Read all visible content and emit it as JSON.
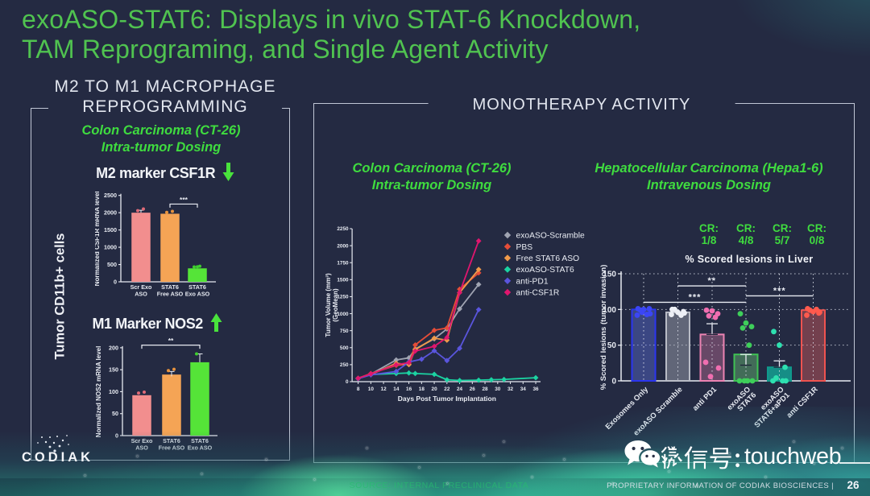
{
  "slide": {
    "title_line1": "exoASO-STAT6: Displays in vivo STAT-6 Knockdown,",
    "title_line2": "TAM Reprograming, and Single Agent Activity",
    "page_number": "26",
    "footer_source": "SOURCE: INTERNAL PRECLINICAL DATA",
    "footer_proprietary": "PROPRIETARY INFORMATION OF CODIAK BIOSCIENCES  |",
    "logo_text": "CODIAK",
    "background_color": "#242a42",
    "title_color": "#50c350",
    "accent_green": "#3fdc3f"
  },
  "watermark": {
    "label": "微信号: touchweb",
    "cjk_part": "微信号:",
    "latin_part": " touchweb",
    "icon": "wechat-icon"
  },
  "left_panel": {
    "heading_line1": "M2 TO M1 MACROPHAGE",
    "heading_line2": "REPROGRAMMING",
    "subtitle_line1": "Colon Carcinoma (CT-26)",
    "subtitle_line2": "Intra-tumor Dosing",
    "side_label": "Tumor CD11b+ cells",
    "chart1_heading": "M2 marker CSF1R",
    "chart1_arrow": "↓",
    "chart2_heading": "M1 Marker NOS2",
    "chart2_arrow": "↑"
  },
  "right_panel": {
    "heading": "MONOTHERAPY ACTIVITY",
    "line_subtitle1": "Colon Carcinoma (CT-26)",
    "line_subtitle2": "Intra-tumor Dosing",
    "bar_subtitle1": "Hepatocellular Carcinoma (Hepa1-6)",
    "bar_subtitle2": "Intravenous Dosing",
    "lesion_title": "% Scored lesions in Liver",
    "cr_labels": [
      {
        "prefix": "CR:",
        "value": "1/8"
      },
      {
        "prefix": "CR:",
        "value": "4/8"
      },
      {
        "prefix": "CR:",
        "value": "5/7"
      },
      {
        "prefix": "CR:",
        "value": "0/8"
      }
    ]
  },
  "chart_data": [
    {
      "id": "csf1r",
      "type": "bar",
      "title": "M2 marker CSF1R",
      "ylabel": "Normalized CSF1R mRNA level",
      "ylim": [
        0,
        2500
      ],
      "ytick_step": 500,
      "categories": [
        [
          "Scr Exo",
          "ASO"
        ],
        [
          "STAT6",
          "Free ASO"
        ],
        [
          "STAT6",
          "Exo ASO"
        ]
      ],
      "values": [
        2000,
        1970,
        390
      ],
      "bar_colors": [
        "#f28e8e",
        "#f5a455",
        "#55e438"
      ],
      "dot_colors": [
        "#e06a77",
        "#e8933e",
        "#3ecf2e"
      ],
      "dots": [
        [
          2060,
          2110
        ],
        [
          2010,
          2040
        ],
        [
          430,
          450,
          435
        ]
      ],
      "whiskers": [
        [
          2000,
          2070
        ],
        null,
        null
      ],
      "significance": [
        {
          "from": 1,
          "to": 2,
          "stars": "***",
          "y": 2250
        }
      ]
    },
    {
      "id": "nos2",
      "type": "bar",
      "title": "M1 Marker NOS2",
      "ylabel": "Normalized NOS2 mRNA level",
      "ylim": [
        0,
        200
      ],
      "ytick_step": 50,
      "categories": [
        [
          "Scr Exo",
          "ASO"
        ],
        [
          "STAT6",
          "Free ASO"
        ],
        [
          "STAT6",
          "Exo ASO"
        ]
      ],
      "values": [
        92,
        139,
        167
      ],
      "bar_colors": [
        "#f28e8e",
        "#f5a455",
        "#55e438"
      ],
      "dot_colors": [
        "#e06a77",
        "#e8933e",
        "#3ecf2e"
      ],
      "dots": [
        [
          97,
          99
        ],
        [
          148,
          151
        ],
        [
          186
        ]
      ],
      "whiskers": [
        null,
        [
          135,
          146
        ],
        [
          167,
          186
        ]
      ],
      "significance": [
        {
          "from": 0,
          "to": 2,
          "stars": "**",
          "y": 206
        }
      ]
    },
    {
      "id": "ct26",
      "type": "line",
      "title": "Colon Carcinoma (CT-26) Intra-tumor Dosing",
      "xlabel": "Days Post Tumor Implantation",
      "ylabel_line1": "Tumor Volume (mm³)",
      "ylabel_line2": "(GeoMean)",
      "xlim": [
        8,
        36
      ],
      "xtick_step": 2,
      "ylim": [
        0,
        2250
      ],
      "ytick_step": 250,
      "series": [
        {
          "name": "exoASO-Scramble",
          "color": "#a0a4b2",
          "points": [
            [
              8,
              50
            ],
            [
              10,
              110
            ],
            [
              14,
              320
            ],
            [
              16,
              350
            ],
            [
              17,
              480
            ],
            [
              20,
              630
            ],
            [
              22,
              775
            ],
            [
              24,
              1070
            ],
            [
              27,
              1430
            ]
          ]
        },
        {
          "name": "PBS",
          "color": "#e64d38",
          "points": [
            [
              8,
              50
            ],
            [
              10,
              120
            ],
            [
              14,
              240
            ],
            [
              16,
              260
            ],
            [
              17,
              540
            ],
            [
              20,
              755
            ],
            [
              22,
              790
            ],
            [
              24,
              1360
            ],
            [
              27,
              1600
            ]
          ]
        },
        {
          "name": "Free STAT6  ASO",
          "color": "#f09a4a",
          "points": [
            [
              8,
              45
            ],
            [
              10,
              105
            ],
            [
              14,
              270
            ],
            [
              16,
              250
            ],
            [
              17,
              470
            ],
            [
              20,
              640
            ],
            [
              22,
              610
            ],
            [
              24,
              1310
            ],
            [
              27,
              1650
            ]
          ]
        },
        {
          "name": "exoASO-STAT6",
          "color": "#1bd3a2",
          "points": [
            [
              8,
              47
            ],
            [
              10,
              105
            ],
            [
              14,
              120
            ],
            [
              16,
              128
            ],
            [
              17,
              120
            ],
            [
              20,
              108
            ],
            [
              22,
              28
            ],
            [
              24,
              18
            ],
            [
              27,
              22
            ],
            [
              29,
              28
            ],
            [
              31,
              33
            ],
            [
              36,
              58
            ]
          ]
        },
        {
          "name": "anti-PD1",
          "color": "#5a55dd",
          "points": [
            [
              8,
              45
            ],
            [
              10,
              100
            ],
            [
              14,
              150
            ],
            [
              16,
              290
            ],
            [
              18,
              330
            ],
            [
              20,
              455
            ],
            [
              22,
              310
            ],
            [
              24,
              490
            ],
            [
              27,
              1060
            ]
          ]
        },
        {
          "name": "anti-CSF1R",
          "color": "#e0166e",
          "points": [
            [
              8,
              50
            ],
            [
              10,
              115
            ],
            [
              14,
              250
            ],
            [
              16,
              280
            ],
            [
              17,
              450
            ],
            [
              20,
              520
            ],
            [
              22,
              650
            ],
            [
              24,
              1310
            ],
            [
              27,
              2070
            ]
          ]
        }
      ]
    },
    {
      "id": "lesions",
      "type": "bar",
      "title": "% Scored lesions in Liver",
      "ylabel": "%  Scored lesions  (tumor invasion)",
      "ylim": [
        0,
        150
      ],
      "ytick_step": 50,
      "categories": [
        [
          "Exosomes Only"
        ],
        [
          "exoASO Scramble"
        ],
        [
          "anti PD1"
        ],
        [
          "exoASO",
          "STAT6"
        ],
        [
          "exoASO",
          "STAT6+aPD1"
        ],
        [
          "anti CSF1R"
        ]
      ],
      "values": [
        100,
        96,
        65,
        37,
        19,
        99
      ],
      "bar_fills": [
        "rgba(95,115,230,0.40)",
        "rgba(172,175,187,0.45)",
        "rgba(214,122,166,0.38)",
        "rgba(110,200,120,0.42)",
        "rgba(22,148,138,0.95)",
        "rgba(226,96,96,0.42)"
      ],
      "bar_strokes": [
        "#2b35f0",
        "#b9bcc6",
        "#ec83b3",
        "#3fc253",
        "#0f9a8c",
        "#ef5350"
      ],
      "dot_colors": [
        "#3b46f5",
        "#eef0f6",
        "#f06eb0",
        "#3ecf5a",
        "#2ee0b0",
        "#ff5a4d"
      ],
      "dots": [
        [
          101,
          100,
          101,
          99,
          93,
          92,
          94,
          96
        ],
        [
          100,
          96,
          97,
          100,
          92,
          93,
          95
        ],
        [
          99,
          98,
          94,
          91,
          89,
          26,
          18,
          6
        ],
        [
          94,
          81,
          76,
          74,
          50,
          0,
          0,
          0,
          0
        ],
        [
          69,
          50,
          19,
          4,
          0,
          0,
          0
        ],
        [
          101,
          97,
          95,
          99,
          100,
          92,
          96
        ]
      ],
      "whiskers": [
        null,
        null,
        [
          65,
          80
        ],
        [
          22,
          37
        ],
        [
          19,
          28
        ],
        null
      ],
      "significance": [
        {
          "from": 0,
          "to": 3,
          "stars": "***",
          "y": 110
        },
        {
          "from": 1,
          "to": 3,
          "stars": "**",
          "y": 133
        },
        {
          "from": 3,
          "to": 5,
          "stars": "***",
          "y": 119
        }
      ]
    }
  ]
}
